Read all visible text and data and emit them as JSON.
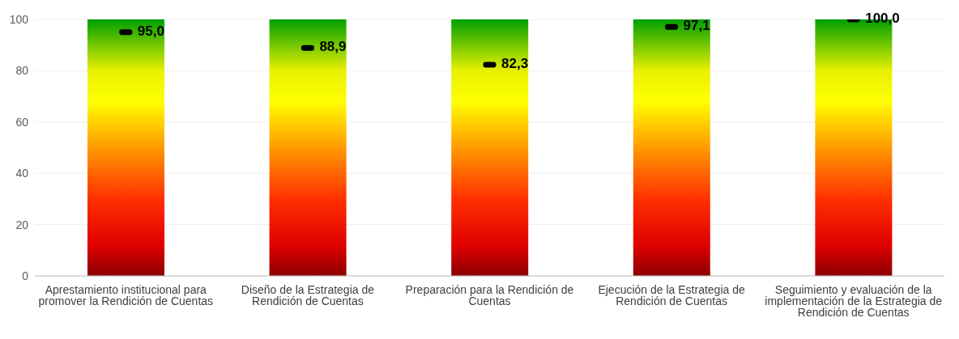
{
  "chart_data": {
    "type": "bar",
    "categories": [
      "Aprestamiento institucional para promover la Rendición de Cuentas",
      "Diseño de la Estrategia de Rendición de Cuentas",
      "Preparación para la Rendición de Cuentas",
      "Ejecución de la Estrategia de Rendición de Cuentas",
      "Seguimiento y evaluación de la implementación de la Estrategia de Rendición de Cuentas"
    ],
    "series": [
      {
        "values": [
          100,
          100,
          100,
          100,
          100
        ]
      },
      {
        "type": "scatter",
        "color": "#000000",
        "marker": "square",
        "values": [
          95.0,
          88.9,
          82.3,
          97.1,
          100.0
        ],
        "value_labels": [
          "95,0",
          "88,9",
          "82,3",
          "97,1",
          "100,0"
        ]
      }
    ],
    "ylim": [
      0,
      100
    ],
    "yticks": [
      0,
      20,
      40,
      60,
      80,
      100
    ],
    "grid": "y"
  }
}
